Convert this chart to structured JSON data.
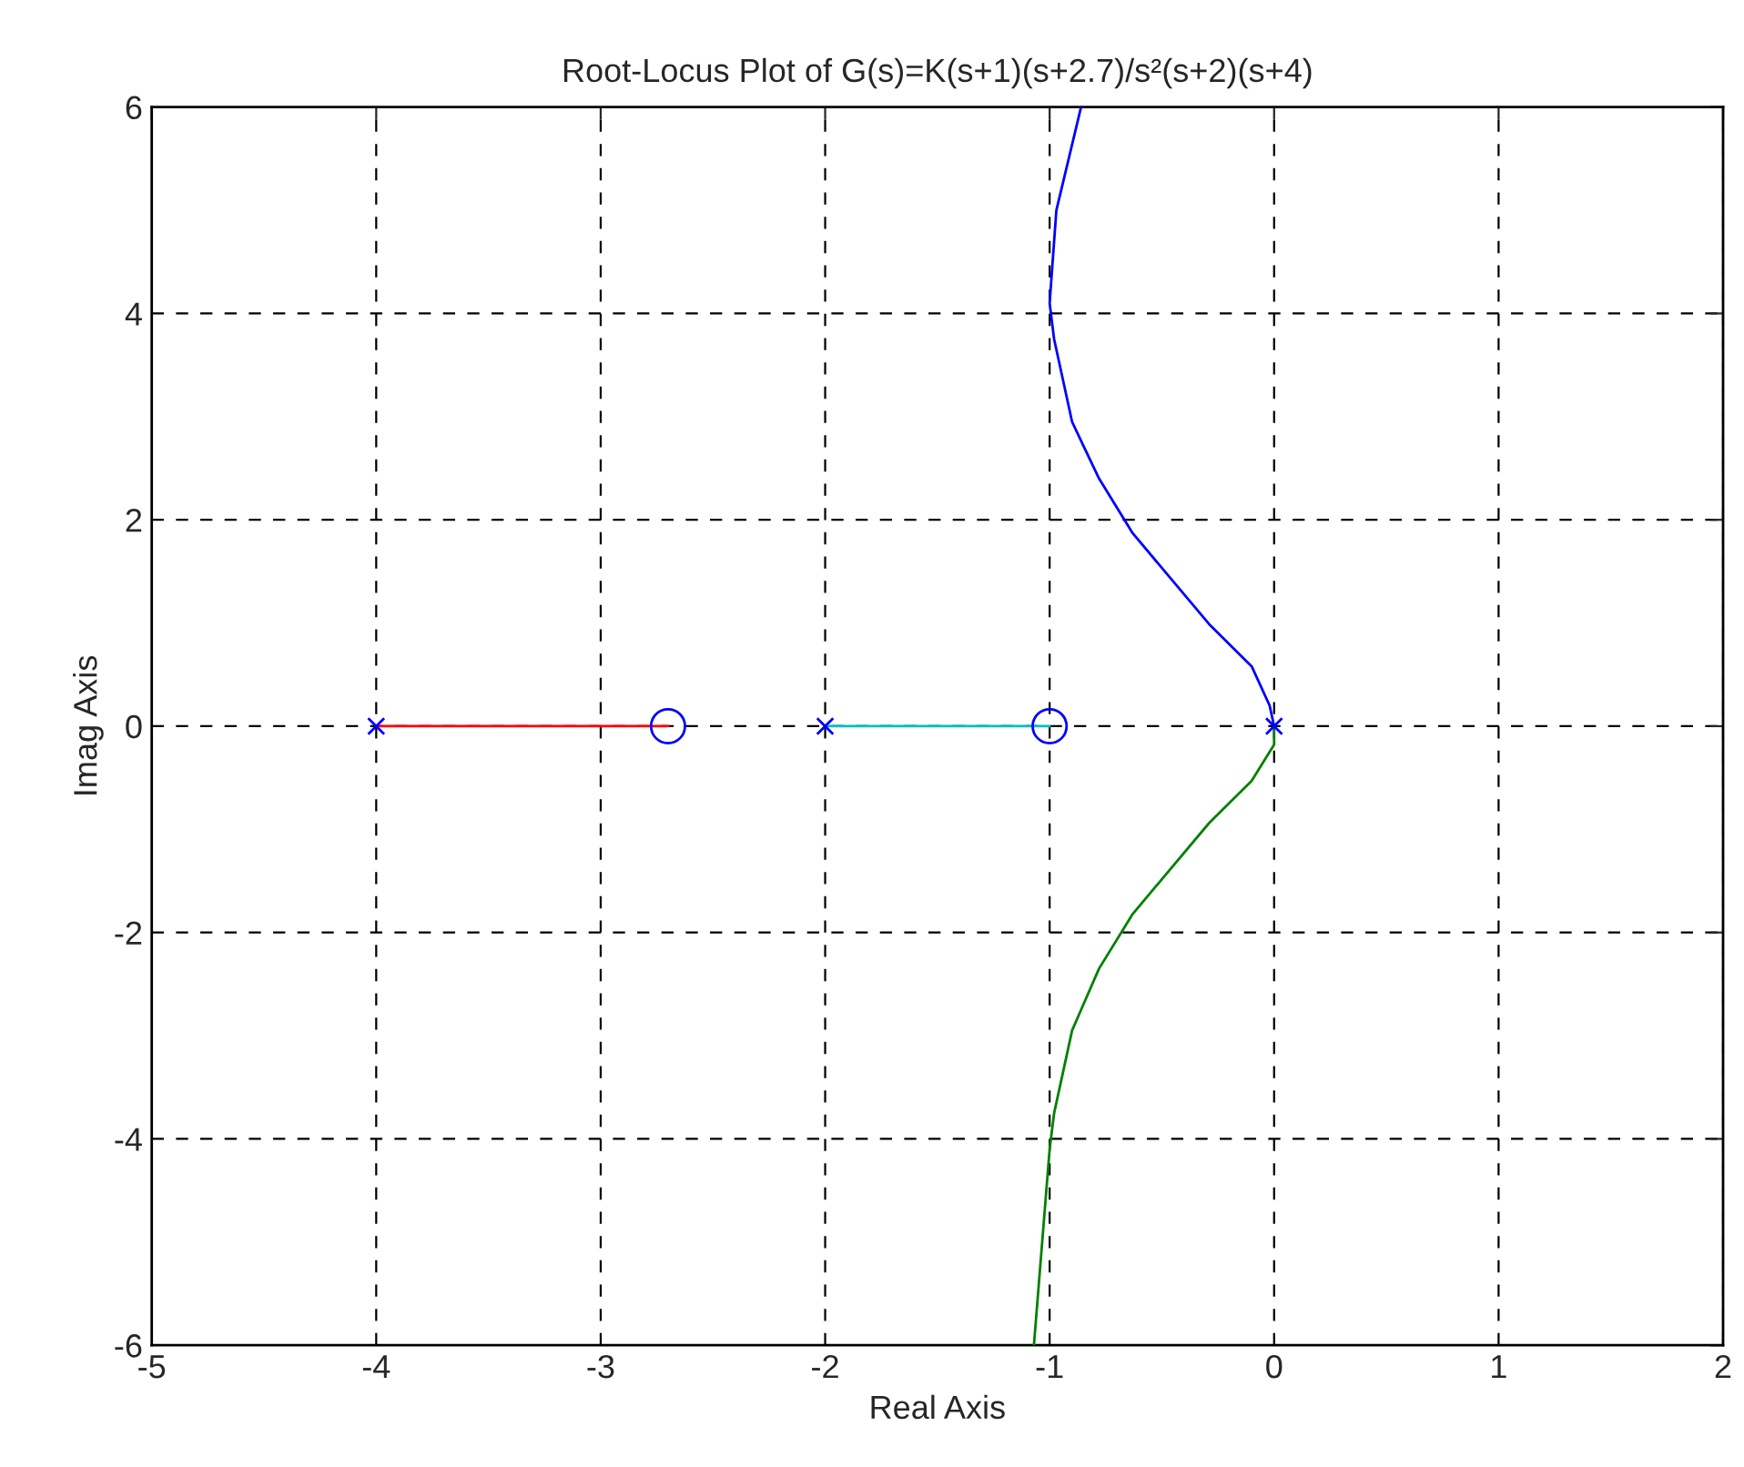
{
  "chart_data": {
    "type": "line",
    "title": "Root-Locus Plot of G(s)=K(s+1)(s+2.7)/s²(s+2)(s+4)",
    "xlabel": "Real Axis",
    "ylabel": "Imag Axis",
    "xlim": [
      -5,
      2
    ],
    "ylim": [
      -6,
      6
    ],
    "xticks": [
      -5,
      -4,
      -3,
      -2,
      -1,
      0,
      1,
      2
    ],
    "yticks": [
      -6,
      -4,
      -2,
      0,
      2,
      4,
      6
    ],
    "grid": true,
    "legend": false,
    "series": [
      {
        "color": "#ff0000",
        "x": [
          -4,
          -2.7
        ],
        "values": [
          0,
          0
        ]
      },
      {
        "color": "#00bfbf",
        "x": [
          -2,
          -1
        ],
        "values": [
          0,
          0
        ]
      },
      {
        "color": "#0000ff",
        "x": [
          0,
          -0.02,
          -0.1,
          -0.29,
          -0.63,
          -0.78,
          -0.85,
          -0.9,
          -0.98,
          -1.0,
          -0.97,
          -0.86
        ],
        "values": [
          0,
          0.2,
          0.58,
          0.99,
          1.87,
          2.4,
          2.72,
          2.95,
          3.75,
          4.1,
          5,
          6
        ]
      },
      {
        "color": "#008000",
        "x": [
          0,
          0,
          -0.1,
          -0.29,
          -0.63,
          -0.78,
          -0.85,
          -0.9,
          -0.98,
          -1.0,
          -1.07
        ],
        "values": [
          0,
          -0.18,
          -0.53,
          -0.94,
          -1.82,
          -2.35,
          -2.7,
          -2.95,
          -3.75,
          -4.1,
          -6
        ]
      },
      {
        "type": "scatter",
        "marker": "cross",
        "color": "#0000ff",
        "x": [
          -4,
          -2,
          0
        ],
        "values": [
          0,
          0,
          0
        ]
      },
      {
        "type": "scatter",
        "marker": "circle",
        "color": "#0000ff",
        "x": [
          -2.7,
          -1
        ],
        "values": [
          0,
          0
        ]
      }
    ]
  }
}
